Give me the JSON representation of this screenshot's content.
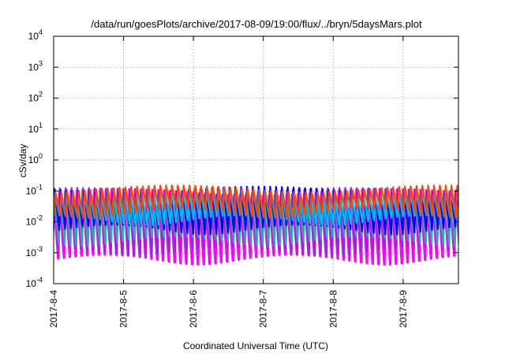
{
  "chart_data": {
    "type": "line",
    "title": "/data/run/goesPlots/archive/2017-08-09/19:00/flux/../bryn/5daysMars.plot",
    "xlabel": "Coordinated Universal Time (UTC)",
    "ylabel": "cSv/day",
    "y_scale": "log",
    "ylim": [
      0.0001,
      10000
    ],
    "y_ticks": [
      {
        "value": 0.0001,
        "base": "10",
        "exp": "-4"
      },
      {
        "value": 0.001,
        "base": "10",
        "exp": "-3"
      },
      {
        "value": 0.01,
        "base": "10",
        "exp": "-2"
      },
      {
        "value": 0.1,
        "base": "10",
        "exp": "-1"
      },
      {
        "value": 1,
        "base": "10",
        "exp": "0"
      },
      {
        "value": 10,
        "base": "10",
        "exp": "1"
      },
      {
        "value": 100,
        "base": "10",
        "exp": "2"
      },
      {
        "value": 1000,
        "base": "10",
        "exp": "3"
      },
      {
        "value": 10000,
        "base": "10",
        "exp": "4"
      }
    ],
    "xlim": [
      "2017-08-04 00:00",
      "2017-08-09 19:00"
    ],
    "x_ticks": [
      "2017-8-4",
      "2017-8-5",
      "2017-8-6",
      "2017-8-7",
      "2017-8-8",
      "2017-8-9"
    ],
    "x_tick_dates": [
      "2017-08-04",
      "2017-08-05",
      "2017-08-06",
      "2017-08-07",
      "2017-08-08",
      "2017-08-09"
    ],
    "grid": true,
    "legend": "none",
    "pattern": {
      "cycle_hours": 2,
      "description_values": "periodic sawtooth",
      "peak_cSv_per_day": 0.1,
      "series": [
        {
          "color": "#ff00ff",
          "peak": 0.09,
          "trough": 0.00065
        },
        {
          "color": "#8a2be2",
          "peak": 0.1,
          "trough": 0.0012
        },
        {
          "color": "#20b2aa",
          "peak": 0.07,
          "trough": 0.0025
        },
        {
          "color": "#0000ff",
          "peak": 0.11,
          "trough": 0.006
        },
        {
          "color": "#00bfff",
          "peak": 0.085,
          "trough": 0.012
        },
        {
          "color": "#ff4500",
          "peak": 0.12,
          "trough": 0.02
        }
      ]
    }
  }
}
